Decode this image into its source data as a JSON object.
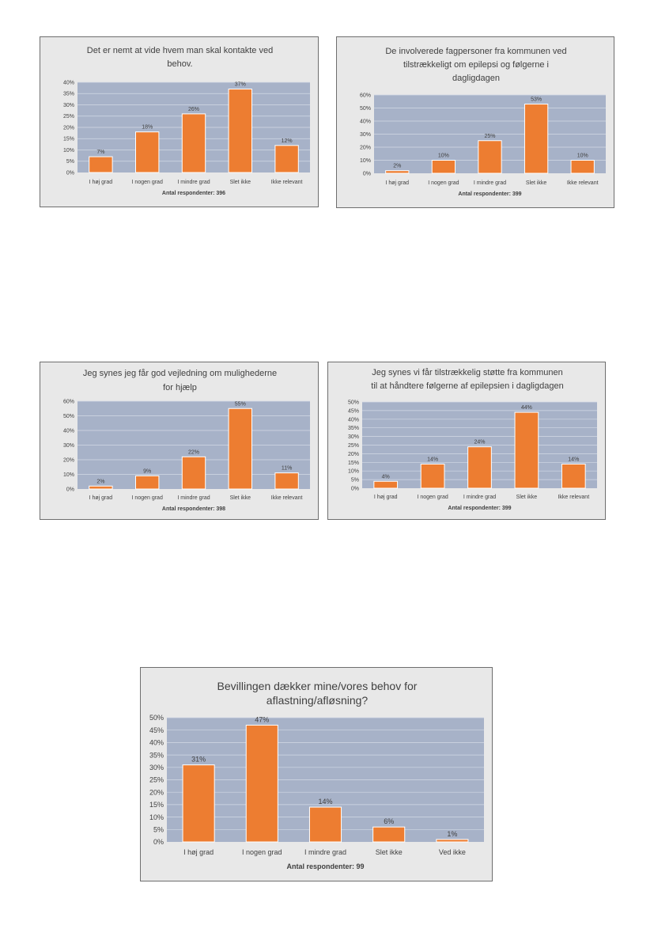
{
  "colors": {
    "bar": "#ed7d31",
    "bar_stroke": "#ffffff",
    "plot_bg": "#a7b2c8",
    "grid": "#d3dae6",
    "box_bg": "#e8e8e8",
    "text": "#404040"
  },
  "chart_data": [
    {
      "type": "bar",
      "title": [
        "Det er nemt at vide hvem man skal kontakte ved",
        "behov."
      ],
      "categories": [
        "I høj grad",
        "I nogen grad",
        "I mindre grad",
        "Slet ikke",
        "Ikke relevant"
      ],
      "values": [
        7,
        18,
        26,
        37,
        12
      ],
      "data_labels": [
        "7%",
        "18%",
        "26%",
        "37%",
        "12%"
      ],
      "yticks": [
        "0%",
        "5%",
        "10%",
        "15%",
        "20%",
        "25%",
        "30%",
        "35%",
        "40%"
      ],
      "ylim": [
        0,
        40
      ],
      "xlabel": "Antal respondenter: 396",
      "grid": true
    },
    {
      "type": "bar",
      "title": [
        "De involverede fagpersoner fra kommunen ved",
        "tilstrækkeligt om epilepsi og følgerne i",
        "dagligdagen"
      ],
      "categories": [
        "I høj grad",
        "I nogen grad",
        "I mindre grad",
        "Slet ikke",
        "Ikke relevant"
      ],
      "values": [
        2,
        10,
        25,
        53,
        10
      ],
      "data_labels": [
        "2%",
        "10%",
        "25%",
        "53%",
        "10%"
      ],
      "yticks": [
        "0%",
        "10%",
        "20%",
        "30%",
        "40%",
        "50%",
        "60%"
      ],
      "ylim": [
        0,
        60
      ],
      "xlabel": "Antal respondenter: 399",
      "grid": true
    },
    {
      "type": "bar",
      "title": [
        "Jeg synes jeg får god vejledning om mulighederne",
        "for hjælp"
      ],
      "categories": [
        "I høj grad",
        "I nogen grad",
        "I mindre grad",
        "Slet ikke",
        "Ikke relevant"
      ],
      "values": [
        2,
        9,
        22,
        55,
        11
      ],
      "data_labels": [
        "2%",
        "9%",
        "22%",
        "55%",
        "11%"
      ],
      "yticks": [
        "0%",
        "10%",
        "20%",
        "30%",
        "40%",
        "50%",
        "60%"
      ],
      "ylim": [
        0,
        60
      ],
      "xlabel": "Antal respondenter: 398",
      "grid": true
    },
    {
      "type": "bar",
      "title": [
        "Jeg synes vi får tilstrækkelig støtte fra kommunen",
        "til at håndtere følgerne af epilepsien i dagligdagen"
      ],
      "categories": [
        "I høj grad",
        "I nogen grad",
        "I mindre grad",
        "Slet ikke",
        "Ikke relevant"
      ],
      "values": [
        4,
        14,
        24,
        44,
        14
      ],
      "data_labels": [
        "4%",
        "14%",
        "24%",
        "44%",
        "14%"
      ],
      "yticks": [
        "0%",
        "5%",
        "10%",
        "15%",
        "20%",
        "25%",
        "30%",
        "35%",
        "40%",
        "45%",
        "50%"
      ],
      "ylim": [
        0,
        50
      ],
      "xlabel": "Antal respondenter: 399",
      "grid": true
    },
    {
      "type": "bar",
      "title": [
        "Bevillingen dækker mine/vores behov for",
        "aflastning/afløsning?"
      ],
      "categories": [
        "I høj grad",
        "I nogen grad",
        "I mindre grad",
        "Slet ikke",
        "Ved ikke"
      ],
      "values": [
        31,
        47,
        14,
        6,
        1
      ],
      "data_labels": [
        "31%",
        "47%",
        "14%",
        "6%",
        "1%"
      ],
      "yticks": [
        "0%",
        "5%",
        "10%",
        "15%",
        "20%",
        "25%",
        "30%",
        "35%",
        "40%",
        "45%",
        "50%"
      ],
      "ylim": [
        0,
        50
      ],
      "xlabel": "Antal respondenter: 99",
      "grid": true
    }
  ]
}
